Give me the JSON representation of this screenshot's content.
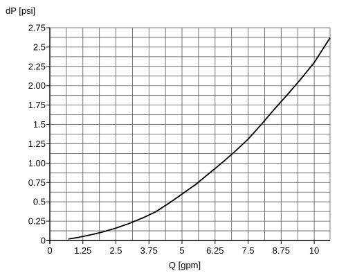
{
  "chart_data": {
    "type": "line",
    "title": "",
    "xlabel": "Q [gpm]",
    "ylabel": "dP [psi]",
    "xlim": [
      0,
      10.6
    ],
    "ylim": [
      0,
      2.75
    ],
    "grid": true,
    "x_tick_labels": [
      {
        "value": 0,
        "label": "0"
      },
      {
        "value": 1.25,
        "label": "1.25"
      },
      {
        "value": 2.5,
        "label": "2.5"
      },
      {
        "value": 3.75,
        "label": "3.75"
      },
      {
        "value": 5,
        "label": "5"
      },
      {
        "value": 6.25,
        "label": "6.25"
      },
      {
        "value": 7.5,
        "label": "7.5"
      },
      {
        "value": 8.75,
        "label": "8.75"
      },
      {
        "value": 10,
        "label": "10"
      }
    ],
    "y_tick_labels": [
      {
        "value": 0,
        "label": "0"
      },
      {
        "value": 0.25,
        "label": "0.25"
      },
      {
        "value": 0.5,
        "label": "0.5"
      },
      {
        "value": 0.75,
        "label": "0.75"
      },
      {
        "value": 1.0,
        "label": "1.00"
      },
      {
        "value": 1.25,
        "label": "1.25"
      },
      {
        "value": 1.5,
        "label": "1.5"
      },
      {
        "value": 1.75,
        "label": "1.75"
      },
      {
        "value": 2.0,
        "label": "2.00"
      },
      {
        "value": 2.25,
        "label": "2.25"
      },
      {
        "value": 2.5,
        "label": "2.5"
      },
      {
        "value": 2.75,
        "label": "2.75"
      }
    ],
    "x_grid_step": 0.625,
    "y_grid_step": 0.125,
    "series": [
      {
        "color": "#000000",
        "x": [
          0.7,
          1.0,
          1.5,
          2.0,
          2.5,
          3.0,
          3.5,
          4.0,
          4.5,
          5.0,
          5.5,
          6.0,
          6.5,
          7.0,
          7.5,
          8.0,
          8.5,
          9.0,
          9.5,
          10.0,
          10.6
        ],
        "y": [
          0.02,
          0.035,
          0.07,
          0.11,
          0.16,
          0.22,
          0.29,
          0.37,
          0.48,
          0.6,
          0.72,
          0.86,
          1.0,
          1.15,
          1.31,
          1.5,
          1.7,
          1.89,
          2.09,
          2.3,
          2.62
        ]
      }
    ]
  }
}
